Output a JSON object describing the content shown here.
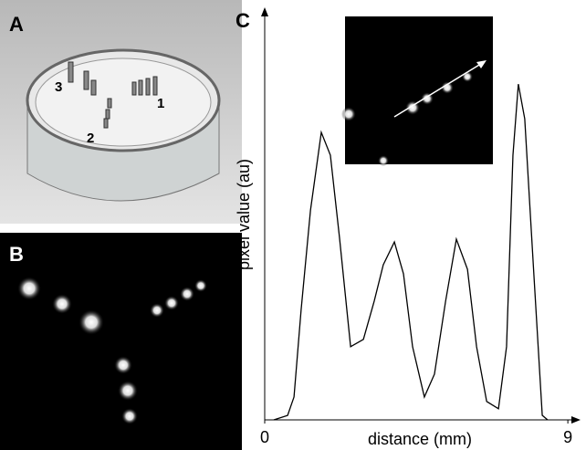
{
  "panels": {
    "a": {
      "label": "A",
      "markers": [
        "1",
        "2",
        "3"
      ]
    },
    "b": {
      "label": "B"
    },
    "c": {
      "label": "C"
    }
  },
  "chart_data": {
    "type": "line",
    "xlabel": "distance (mm)",
    "ylabel": "pixel value (au)",
    "x": [
      0.27,
      0.68,
      0.87,
      1.08,
      1.36,
      1.68,
      1.95,
      2.22,
      2.55,
      2.93,
      3.25,
      3.52,
      3.85,
      4.12,
      4.39,
      4.74,
      5.04,
      5.37,
      5.69,
      6.02,
      6.29,
      6.59,
      6.94,
      7.18,
      7.37,
      7.53,
      7.72,
      7.99,
      8.24,
      8.4
    ],
    "values": [
      0,
      1.3,
      6.6,
      31.6,
      60.5,
      82.9,
      76.3,
      52.6,
      21.1,
      23.2,
      34.2,
      44.7,
      51.3,
      42.1,
      21.1,
      6.6,
      13.2,
      34.2,
      52.1,
      43.4,
      21.1,
      5.3,
      3.2,
      21.1,
      76.3,
      96.8,
      86.8,
      42.1,
      1.3,
      0
    ],
    "color": "#000000",
    "xlim": [
      0,
      9.2
    ],
    "ylim": [
      0,
      100
    ],
    "xticks": [
      0,
      9
    ]
  }
}
